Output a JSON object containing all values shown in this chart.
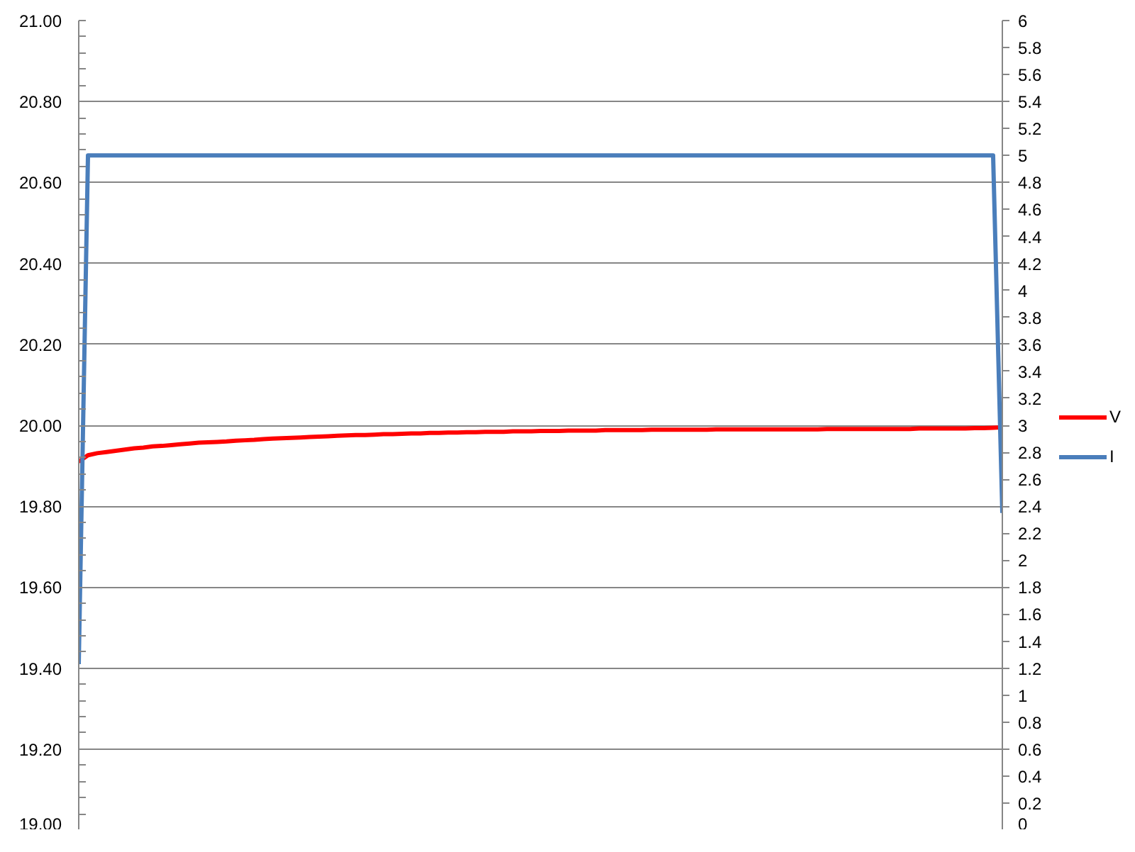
{
  "chart_data": {
    "type": "line",
    "categories": [
      null,
      null,
      null,
      null,
      null,
      null,
      null,
      null,
      null,
      null,
      null,
      null,
      null,
      null,
      null,
      null,
      null,
      null,
      null,
      null,
      null,
      null,
      null,
      null,
      null,
      null,
      null,
      null,
      null,
      null,
      null,
      null,
      null,
      null,
      null,
      null,
      null,
      null,
      null,
      null,
      null,
      null,
      null,
      null,
      null,
      null,
      null,
      null,
      null,
      null,
      null,
      null,
      null,
      null,
      null,
      null,
      null,
      null,
      null,
      null,
      null,
      null,
      null,
      null,
      null,
      null,
      null,
      null,
      null,
      null,
      null,
      null,
      null,
      null,
      null,
      null,
      null,
      null,
      null,
      null,
      null,
      null,
      null,
      null,
      null,
      null,
      null,
      null,
      null,
      null,
      null,
      null,
      null,
      null,
      null,
      null,
      null,
      null,
      null,
      null,
      null
    ],
    "series": [
      {
        "name": "V",
        "color": "#ff0000",
        "values": [
          19.91,
          19.926,
          19.931,
          19.934,
          19.937,
          19.94,
          19.943,
          19.945,
          19.948,
          19.949,
          19.951,
          19.953,
          19.955,
          19.957,
          19.958,
          19.959,
          19.96,
          19.962,
          19.963,
          19.964,
          19.966,
          19.967,
          19.968,
          19.969,
          19.97,
          19.971,
          19.972,
          19.973,
          19.974,
          19.975,
          19.976,
          19.976,
          19.977,
          19.978,
          19.978,
          19.979,
          19.98,
          19.98,
          19.981,
          19.981,
          19.982,
          19.982,
          19.983,
          19.983,
          19.984,
          19.984,
          19.984,
          19.985,
          19.985,
          19.985,
          19.986,
          19.986,
          19.986,
          19.987,
          19.987,
          19.987,
          19.987,
          19.988,
          19.988,
          19.988,
          19.988,
          19.988,
          19.989,
          19.989,
          19.989,
          19.989,
          19.989,
          19.989,
          19.989,
          19.99,
          19.99,
          19.99,
          19.99,
          19.99,
          19.99,
          19.99,
          19.99,
          19.99,
          19.99,
          19.99,
          19.99,
          19.991,
          19.991,
          19.991,
          19.991,
          19.991,
          19.991,
          19.991,
          19.991,
          19.991,
          19.991,
          19.992,
          19.992,
          19.992,
          19.992,
          19.992,
          19.992,
          19.993,
          19.993,
          19.994,
          19.995
        ]
      },
      {
        "name": "I",
        "color": "#4a7ebb",
        "axis": "y2",
        "values": [
          1.23,
          5,
          5,
          5,
          5,
          5,
          5,
          5,
          5,
          5,
          5,
          5,
          5,
          5,
          5,
          5,
          5,
          5,
          5,
          5,
          5,
          5,
          5,
          5,
          5,
          5,
          5,
          5,
          5,
          5,
          5,
          5,
          5,
          5,
          5,
          5,
          5,
          5,
          5,
          5,
          5,
          5,
          5,
          5,
          5,
          5,
          5,
          5,
          5,
          5,
          5,
          5,
          5,
          5,
          5,
          5,
          5,
          5,
          5,
          5,
          5,
          5,
          5,
          5,
          5,
          5,
          5,
          5,
          5,
          5,
          5,
          5,
          5,
          5,
          5,
          5,
          5,
          5,
          5,
          5,
          5,
          5,
          5,
          5,
          5,
          5,
          5,
          5,
          5,
          5,
          5,
          5,
          5,
          5,
          5,
          5,
          5,
          5,
          5,
          5,
          2.35
        ]
      }
    ],
    "ylim": [
      19,
      21
    ],
    "yticks": [
      {
        "value": 19,
        "label": "19.00"
      },
      {
        "value": 19.04,
        "label": null
      },
      {
        "value": 19.08,
        "label": null
      },
      {
        "value": 19.12,
        "label": null
      },
      {
        "value": 19.16,
        "label": null
      },
      {
        "value": 19.2,
        "label": "19.20"
      },
      {
        "value": 19.24,
        "label": null
      },
      {
        "value": 19.28,
        "label": null
      },
      {
        "value": 19.32,
        "label": null
      },
      {
        "value": 19.36,
        "label": null
      },
      {
        "value": 19.4,
        "label": "19.40"
      },
      {
        "value": 19.44,
        "label": null
      },
      {
        "value": 19.48,
        "label": null
      },
      {
        "value": 19.52,
        "label": null
      },
      {
        "value": 19.56,
        "label": null
      },
      {
        "value": 19.6,
        "label": "19.60"
      },
      {
        "value": 19.64,
        "label": null
      },
      {
        "value": 19.68,
        "label": null
      },
      {
        "value": 19.72,
        "label": null
      },
      {
        "value": 19.76,
        "label": null
      },
      {
        "value": 19.8,
        "label": "19.80"
      },
      {
        "value": 19.84,
        "label": null
      },
      {
        "value": 19.88,
        "label": null
      },
      {
        "value": 19.92,
        "label": null
      },
      {
        "value": 19.96,
        "label": null
      },
      {
        "value": 20,
        "label": "20.00"
      },
      {
        "value": 20.04,
        "label": null
      },
      {
        "value": 20.08,
        "label": null
      },
      {
        "value": 20.12,
        "label": null
      },
      {
        "value": 20.16,
        "label": null
      },
      {
        "value": 20.2,
        "label": "20.20"
      },
      {
        "value": 20.24,
        "label": null
      },
      {
        "value": 20.28,
        "label": null
      },
      {
        "value": 20.32,
        "label": null
      },
      {
        "value": 20.36,
        "label": null
      },
      {
        "value": 20.4,
        "label": "20.40"
      },
      {
        "value": 20.44,
        "label": null
      },
      {
        "value": 20.48,
        "label": null
      },
      {
        "value": 20.52,
        "label": null
      },
      {
        "value": 20.56,
        "label": null
      },
      {
        "value": 20.6,
        "label": "20.60"
      },
      {
        "value": 20.64,
        "label": null
      },
      {
        "value": 20.68,
        "label": null
      },
      {
        "value": 20.72,
        "label": null
      },
      {
        "value": 20.76,
        "label": null
      },
      {
        "value": 20.8,
        "label": "20.80"
      },
      {
        "value": 20.84,
        "label": null
      },
      {
        "value": 20.88,
        "label": null
      },
      {
        "value": 20.92,
        "label": null
      },
      {
        "value": 20.96,
        "label": null
      },
      {
        "value": 21,
        "label": "21.00"
      }
    ],
    "y2lim": [
      0,
      6
    ],
    "y2ticks": [
      0,
      0.2,
      0.4,
      0.6,
      0.8,
      1,
      1.2,
      1.4,
      1.6,
      1.8,
      2,
      2.2,
      2.4,
      2.6,
      2.8,
      3,
      3.2,
      3.4,
      3.6,
      3.8,
      4,
      4.2,
      4.4,
      4.6,
      4.8,
      5,
      5.2,
      5.4,
      5.6,
      5.8,
      6
    ],
    "grid": "y",
    "legend": "right",
    "line_style": "solid"
  }
}
